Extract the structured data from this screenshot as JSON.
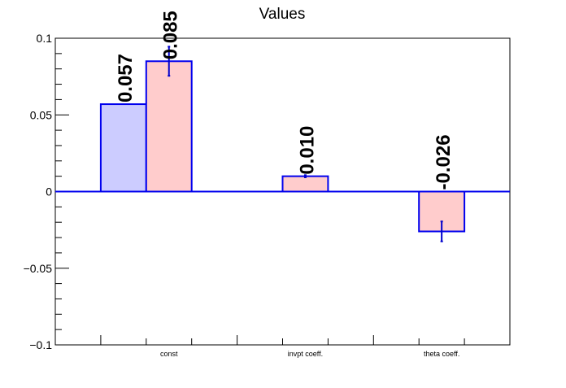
{
  "chart_data": {
    "type": "bar",
    "title": "Values",
    "categories": [
      "const",
      "invpt coeff.",
      "theta coeff."
    ],
    "ylim": [
      -0.1,
      0.1
    ],
    "yticks": [
      -0.1,
      -0.05,
      0,
      0.05,
      0.1
    ],
    "ytick_labels": [
      "−0.1",
      "−0.05",
      "0",
      "0.05",
      "0.1"
    ],
    "grid": false,
    "legend": "none",
    "series": [
      {
        "color": "#ccccff",
        "values": [
          0.057,
          null,
          null
        ],
        "errors": [
          null,
          null,
          null
        ],
        "labels": [
          "0.057",
          "",
          ""
        ]
      },
      {
        "color": "#ffcccc",
        "values": [
          0.085,
          0.01,
          -0.026
        ],
        "errors": [
          0.0095,
          0.0007,
          0.0065
        ],
        "labels": [
          "0.085",
          "0.010",
          "-0.026"
        ]
      }
    ],
    "colors": {
      "outline": "#0000ee",
      "error_bar": "#0000cc",
      "axis": "#000000"
    }
  }
}
